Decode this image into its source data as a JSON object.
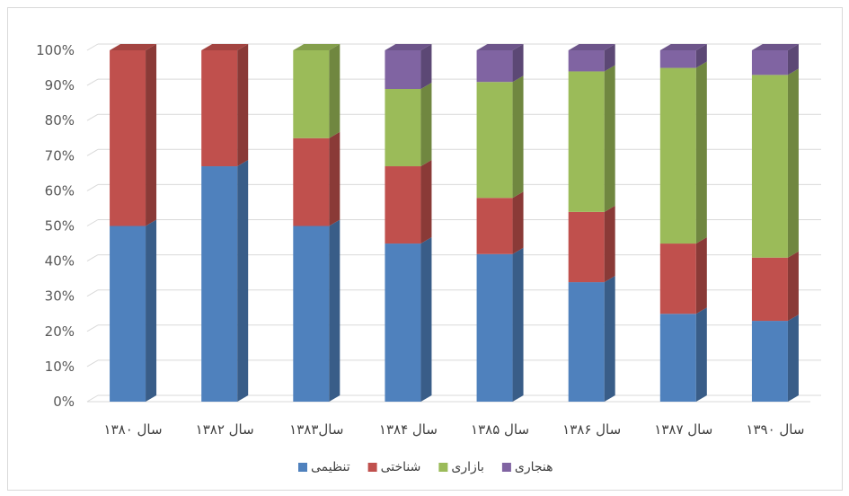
{
  "chart_data": {
    "type": "bar",
    "stacked": "percent",
    "categories": [
      "سال ۱۳۸۰",
      "سال ۱۳۸۲",
      "سال۱۳۸۳",
      "سال ۱۳۸۴",
      "سال ۱۳۸۵",
      "سال ۱۳۸۶",
      "سال ۱۳۸۷",
      "سال ۱۳۹۰"
    ],
    "series": [
      {
        "name": "تنظیمی",
        "color": "#4f81bd",
        "values": [
          50,
          67,
          50,
          45,
          42,
          34,
          25,
          23
        ]
      },
      {
        "name": "شناختی",
        "color": "#c0504d",
        "values": [
          50,
          33,
          25,
          22,
          16,
          20,
          20,
          18
        ]
      },
      {
        "name": "بازاری",
        "color": "#9bbb59",
        "values": [
          0,
          0,
          25,
          22,
          33,
          40,
          50,
          52
        ]
      },
      {
        "name": "هنجاری",
        "color": "#8064a2",
        "values": [
          0,
          0,
          0,
          11,
          9,
          6,
          5,
          7
        ]
      }
    ],
    "yticks": [
      "0%",
      "10%",
      "20%",
      "30%",
      "40%",
      "50%",
      "60%",
      "70%",
      "80%",
      "90%",
      "100%"
    ],
    "ylim": [
      0,
      100
    ],
    "grid": true,
    "legend": "bottom",
    "title": "",
    "xlabel": "",
    "ylabel": ""
  }
}
